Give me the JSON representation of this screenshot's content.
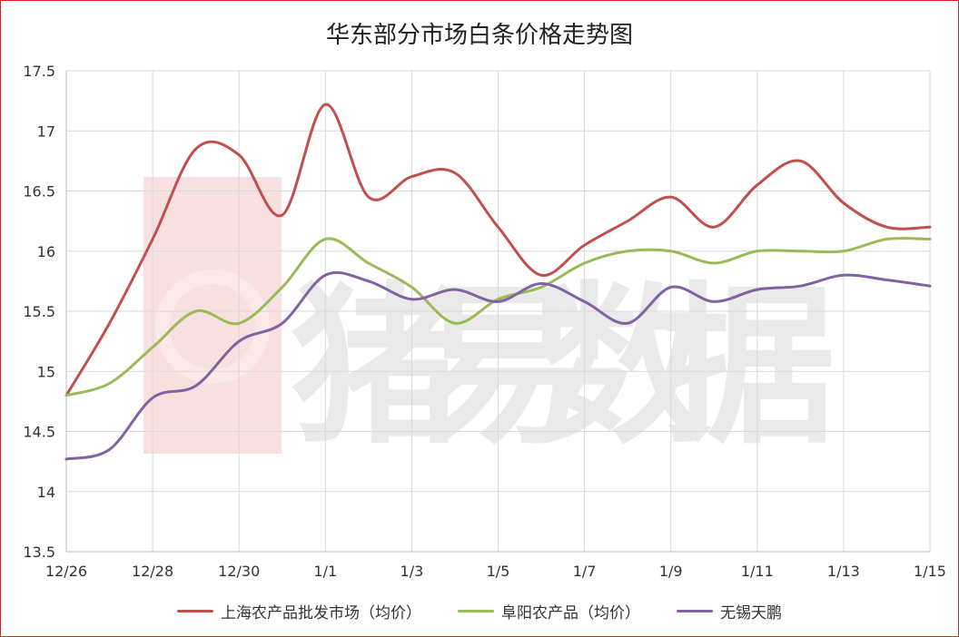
{
  "chart_data": {
    "type": "line",
    "title": "华东部分市场白条价格走势图",
    "xlabel": "",
    "ylabel": "",
    "ylim": [
      13.5,
      17.5
    ],
    "ytick_step": 0.5,
    "yticks": [
      "13.5",
      "14",
      "14.5",
      "15",
      "15.5",
      "16",
      "16.5",
      "17",
      "17.5"
    ],
    "x": [
      "12/26",
      "12/27",
      "12/28",
      "12/29",
      "12/30",
      "12/31",
      "1/1",
      "1/2",
      "1/3",
      "1/4",
      "1/5",
      "1/6",
      "1/7",
      "1/8",
      "1/9",
      "1/10",
      "1/11",
      "1/12",
      "1/13",
      "1/14",
      "1/15"
    ],
    "xtick_labels": [
      "12/26",
      "12/28",
      "12/30",
      "1/1",
      "1/3",
      "1/5",
      "1/7",
      "1/9",
      "1/11",
      "1/13",
      "1/15"
    ],
    "grid": true,
    "legend_position": "bottom",
    "watermark": "猪易数据",
    "series": [
      {
        "name": "上海农产品批发市场（均价）",
        "color": "#c0504d",
        "values": [
          14.8,
          15.4,
          16.1,
          16.85,
          16.8,
          16.3,
          17.22,
          16.45,
          16.62,
          16.65,
          16.2,
          15.8,
          16.05,
          16.25,
          16.45,
          16.2,
          16.55,
          16.75,
          16.4,
          16.2,
          16.2
        ]
      },
      {
        "name": "阜阳农产品（均价）",
        "color": "#9bbb59",
        "values": [
          14.8,
          14.9,
          15.2,
          15.5,
          15.4,
          15.7,
          16.1,
          15.9,
          15.7,
          15.4,
          15.6,
          15.7,
          15.9,
          16.0,
          16.0,
          15.9,
          16.0,
          16.0,
          16.0,
          16.1,
          16.1
        ]
      },
      {
        "name": "无锡天鹏",
        "color": "#8064a2",
        "values": [
          14.27,
          14.35,
          14.78,
          14.88,
          15.25,
          15.4,
          15.8,
          15.75,
          15.6,
          15.68,
          15.58,
          15.73,
          15.58,
          15.4,
          15.7,
          15.58,
          15.68,
          15.71,
          15.8,
          15.76,
          15.71
        ]
      }
    ]
  }
}
